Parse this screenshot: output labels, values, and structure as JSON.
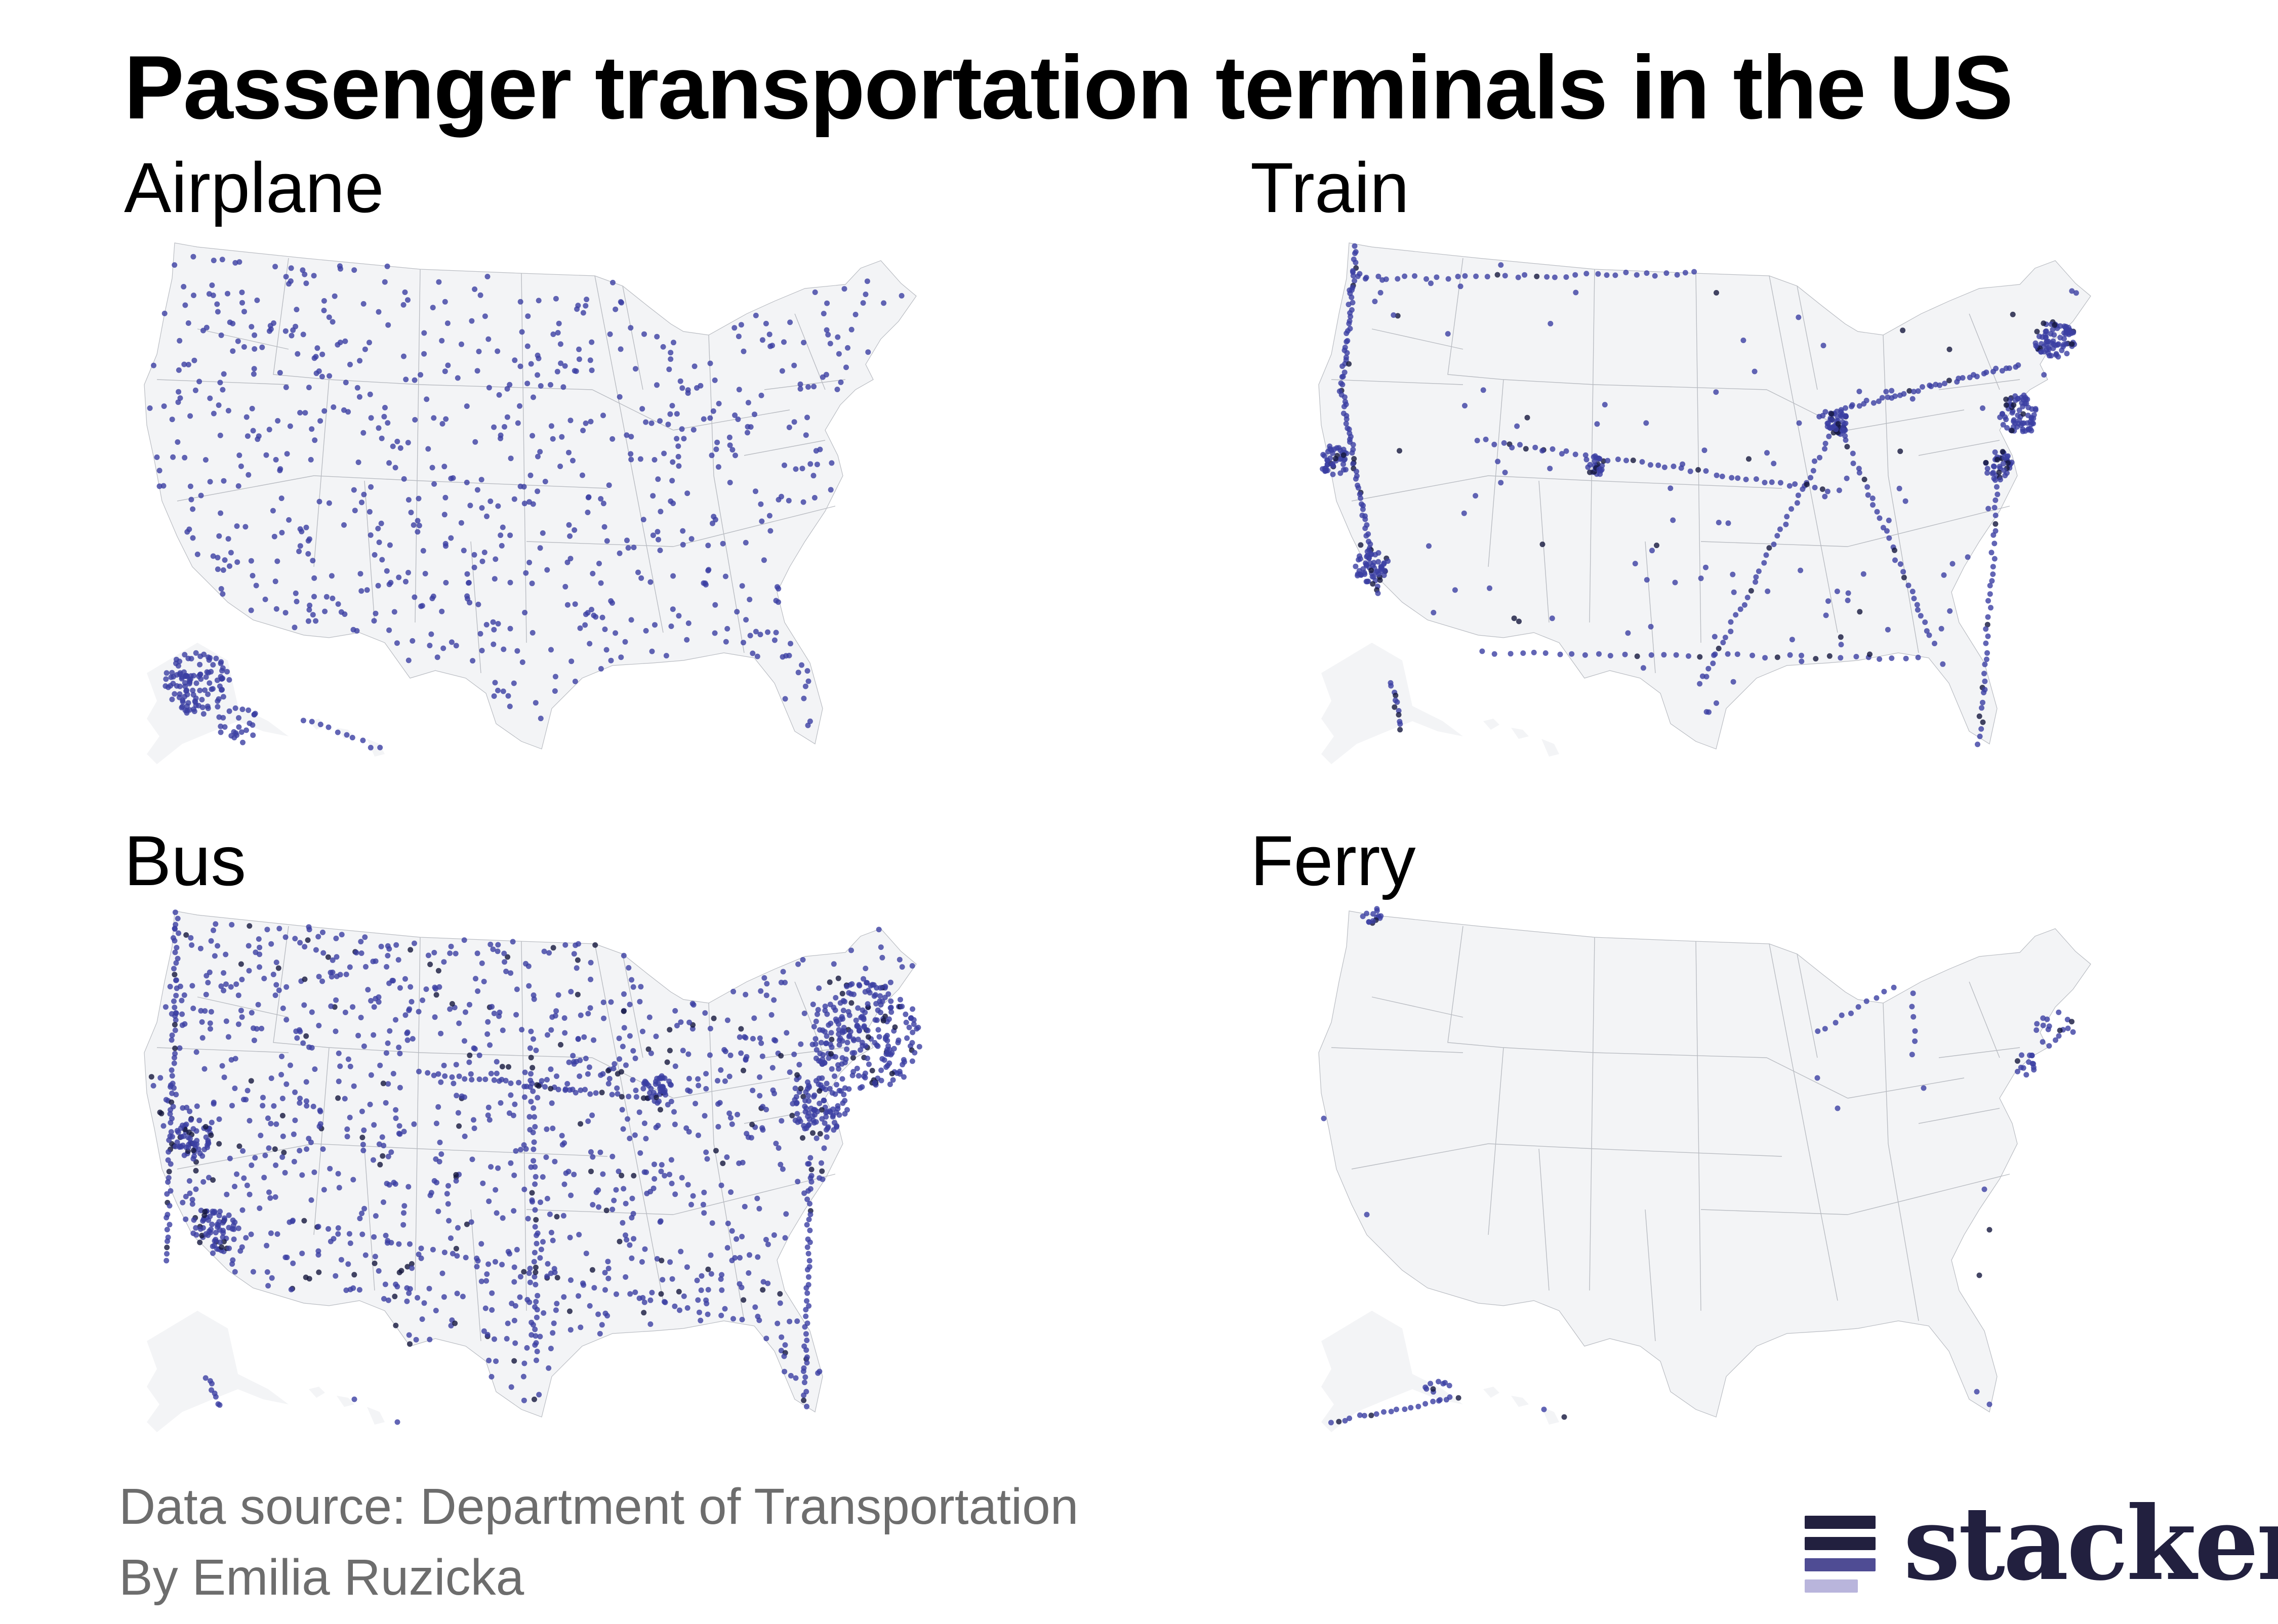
{
  "title": "Passenger transportation terminals in the US",
  "panels": [
    {
      "label": "Airplane",
      "mode": "airplane"
    },
    {
      "label": "Train",
      "mode": "train"
    },
    {
      "label": "Bus",
      "mode": "bus"
    },
    {
      "label": "Ferry",
      "mode": "ferry"
    }
  ],
  "source": "Data source: Department of Transportation",
  "byline": "By Emilia Ruzicka",
  "logo": {
    "word": "stacker"
  },
  "colors": {
    "land": "#f3f4f6",
    "borders": "#b9bcc2",
    "dot": "#3b3fa3",
    "dot_dense": "#14163d",
    "logo_dark": "#22203f",
    "logo_mid": "#4f4c94",
    "logo_light": "#b9b5dc",
    "footer_text": "#6d6d6d"
  }
}
